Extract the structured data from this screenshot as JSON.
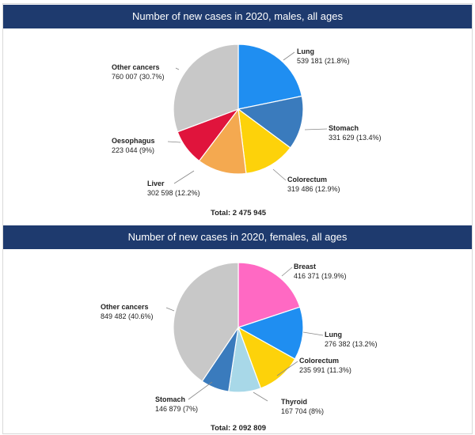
{
  "chart_data": [
    {
      "type": "pie",
      "title": "Number of new cases in 2020, males, all ages",
      "total_label": "Total: 2 475 945",
      "slices": [
        {
          "name": "Lung",
          "value_label": "539 181 (21.8%)",
          "value": 539181,
          "percent": 21.8,
          "color": "#1f8ef1"
        },
        {
          "name": "Stomach",
          "value_label": "331 629 (13.4%)",
          "value": 331629,
          "percent": 13.4,
          "color": "#3a7bbd"
        },
        {
          "name": "Colorectum",
          "value_label": "319 486 (12.9%)",
          "value": 319486,
          "percent": 12.9,
          "color": "#fdd20a"
        },
        {
          "name": "Liver",
          "value_label": "302 598 (12.2%)",
          "value": 302598,
          "percent": 12.2,
          "color": "#f4a950"
        },
        {
          "name": "Oesophagus",
          "value_label": "223 044 (9%)",
          "value": 223044,
          "percent": 9.0,
          "color": "#e0143c"
        },
        {
          "name": "Other cancers",
          "value_label": "760 007 (30.7%)",
          "value": 760007,
          "percent": 30.7,
          "color": "#c8c8c8"
        }
      ]
    },
    {
      "type": "pie",
      "title": "Number of new cases in 2020, females, all ages",
      "total_label": "Total: 2 092 809",
      "slices": [
        {
          "name": "Breast",
          "value_label": "416 371 (19.9%)",
          "value": 416371,
          "percent": 19.9,
          "color": "#ff69c3"
        },
        {
          "name": "Lung",
          "value_label": "276 382 (13.2%)",
          "value": 276382,
          "percent": 13.2,
          "color": "#1f8ef1"
        },
        {
          "name": "Colorectum",
          "value_label": "235 991 (11.3%)",
          "value": 235991,
          "percent": 11.3,
          "color": "#fdd20a"
        },
        {
          "name": "Thyroid",
          "value_label": "167 704 (8%)",
          "value": 167704,
          "percent": 8.0,
          "color": "#a8d8e8"
        },
        {
          "name": "Stomach",
          "value_label": "146 879 (7%)",
          "value": 146879,
          "percent": 7.0,
          "color": "#3a7bbd"
        },
        {
          "name": "Other cancers",
          "value_label": "849 482 (40.6%)",
          "value": 849482,
          "percent": 40.6,
          "color": "#c8c8c8"
        }
      ]
    }
  ]
}
